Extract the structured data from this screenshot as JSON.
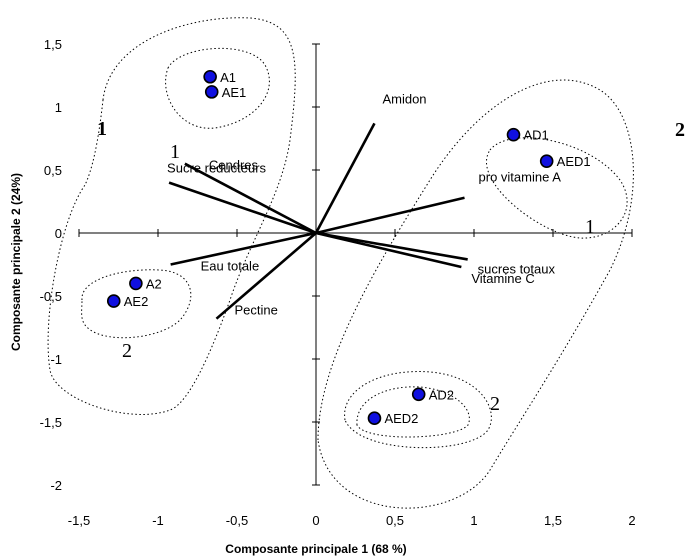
{
  "chart_data": {
    "type": "scatter",
    "xlabel": "Composante principale 1 (68 %)",
    "ylabel": "Composante principale 2 (24%)",
    "xlim": [
      -1.5,
      2
    ],
    "ylim": [
      -2,
      1.5
    ],
    "x_ticks": [
      "-1,5",
      "-1",
      "-0,5",
      "0",
      "0,5",
      "1",
      "1,5",
      "2"
    ],
    "y_ticks": [
      "-2",
      "-1,5",
      "-1",
      "-0,5",
      "0",
      "0,5",
      "1",
      "1,5"
    ],
    "points": [
      {
        "label": "A1",
        "x": -0.67,
        "y": 1.24
      },
      {
        "label": "AE1",
        "x": -0.66,
        "y": 1.12
      },
      {
        "label": "AD1",
        "x": 1.25,
        "y": 0.78
      },
      {
        "label": "AED1",
        "x": 1.46,
        "y": 0.57
      },
      {
        "label": "A2",
        "x": -1.14,
        "y": -0.4
      },
      {
        "label": "AE2",
        "x": -1.28,
        "y": -0.54
      },
      {
        "label": "AD2",
        "x": 0.65,
        "y": -1.28
      },
      {
        "label": "AED2",
        "x": 0.37,
        "y": -1.47
      }
    ],
    "vectors": [
      {
        "label": "Amidon",
        "x": 0.37,
        "y": 0.87
      },
      {
        "label": "Cendres",
        "x": -0.83,
        "y": 0.55
      },
      {
        "label": "Sucre reducteurs",
        "x": -0.93,
        "y": 0.4
      },
      {
        "label": "pro vitamine A",
        "x": 0.94,
        "y": 0.28
      },
      {
        "label": "sucres totaux",
        "x": 0.96,
        "y": -0.21
      },
      {
        "label": "Vitamine C",
        "x": 0.92,
        "y": -0.27
      },
      {
        "label": "Eau totale",
        "x": -0.92,
        "y": -0.25
      },
      {
        "label": "Pectine",
        "x": -0.63,
        "y": -0.68
      }
    ],
    "annotations": {
      "group_left": "1",
      "group_right": "2",
      "sub_left_1": "1",
      "sub_left_2": "2",
      "sub_right_1": "1",
      "sub_right_2": "2"
    },
    "grid": false,
    "legend": "none",
    "colors": {
      "point_fill": "#1010e0",
      "point_stroke": "#000000",
      "line": "#000000"
    }
  }
}
